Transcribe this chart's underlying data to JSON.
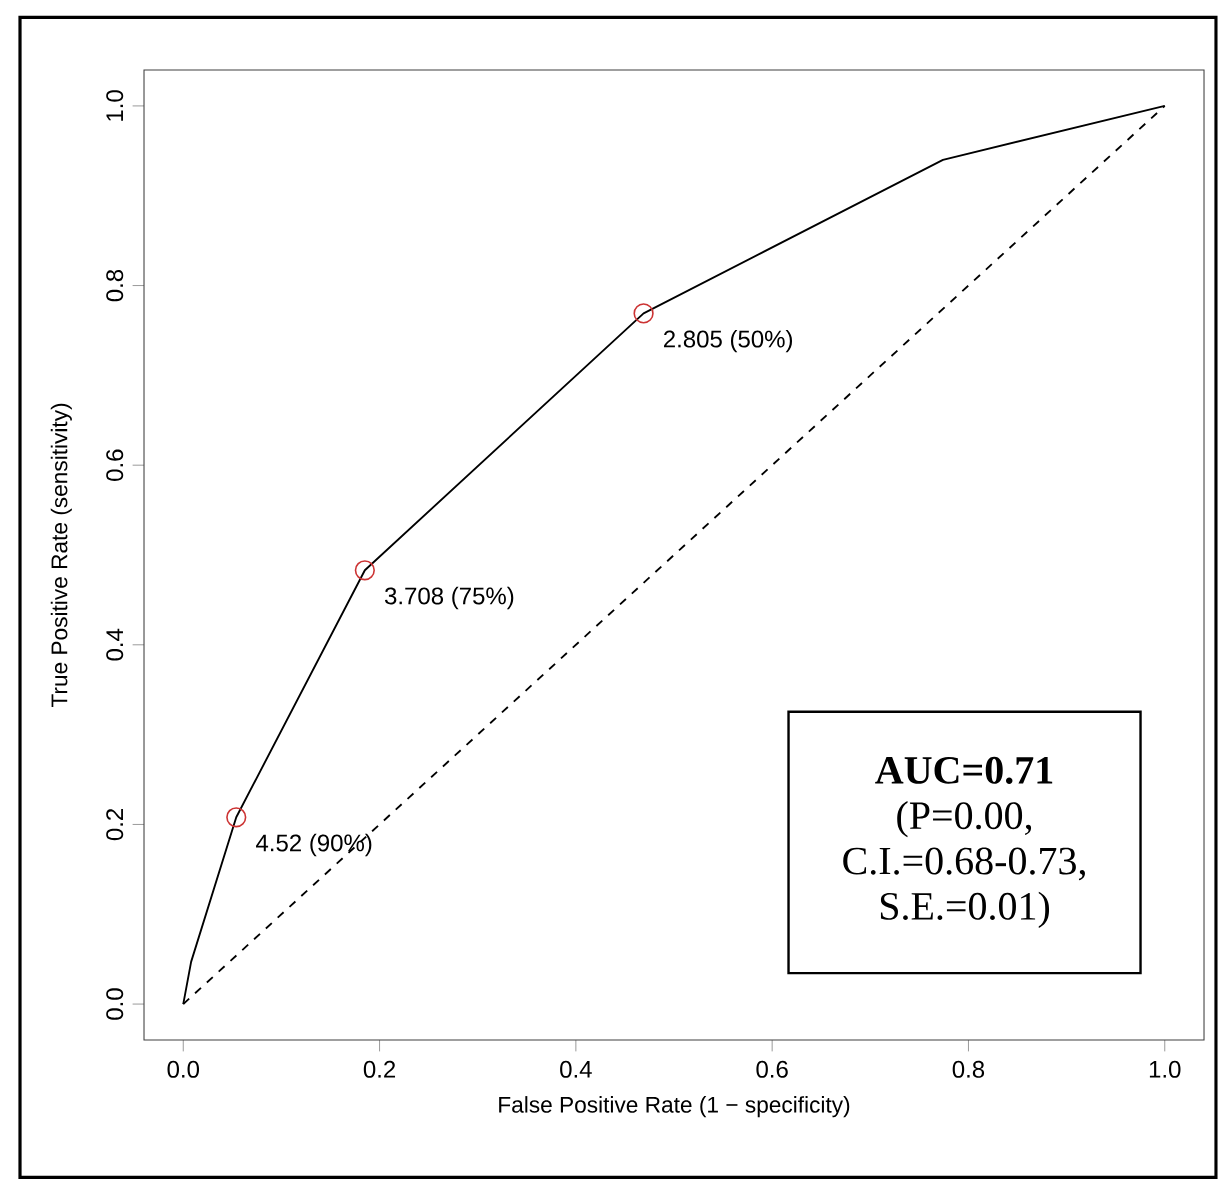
{
  "chart_data": {
    "type": "line",
    "xlabel": "False Positive Rate (1 − specificity)",
    "ylabel": "True Positive Rate (sensitivity)",
    "xlim": [
      -0.04,
      1.04
    ],
    "ylim": [
      -0.04,
      1.04
    ],
    "xticks": [
      {
        "value": 0,
        "label": "0.0"
      },
      {
        "value": 0.2,
        "label": "0.2"
      },
      {
        "value": 0.4,
        "label": "0.4"
      },
      {
        "value": 0.6,
        "label": "0.6"
      },
      {
        "value": 0.8,
        "label": "0.8"
      },
      {
        "value": 1,
        "label": "1.0"
      }
    ],
    "yticks": [
      {
        "value": 0,
        "label": "0.0"
      },
      {
        "value": 0.2,
        "label": "0.2"
      },
      {
        "value": 0.4,
        "label": "0.4"
      },
      {
        "value": 0.6,
        "label": "0.6"
      },
      {
        "value": 0.8,
        "label": "0.8"
      },
      {
        "value": 1,
        "label": "1.0"
      }
    ],
    "series": [
      {
        "x": [
          0,
          0.008,
          0.054,
          0.185,
          0.469,
          0.774,
          1
        ],
        "values": [
          0,
          0.047,
          0.208,
          0.483,
          0.769,
          0.94,
          1
        ],
        "color": "#000000",
        "line_style": "solid",
        "marker": "none"
      },
      {
        "type": "line",
        "x": [
          0,
          1
        ],
        "values": [
          0,
          1
        ],
        "color": "#000000",
        "line_style": "dashed",
        "marker": "none"
      },
      {
        "type": "scatter",
        "x": [
          0.054,
          0.185,
          0.469
        ],
        "values": [
          0.208,
          0.483,
          0.769
        ],
        "color": "#cc3333",
        "marker": "circle",
        "value_labels": [
          "4.52 (90%)",
          "3.708 (75%)",
          "2.805 (50%)"
        ]
      }
    ],
    "annotations": [
      "AUC=0.71",
      "(P=0.00,",
      "C.I.=0.68-0.73,",
      "S.E.=0.01)"
    ]
  }
}
